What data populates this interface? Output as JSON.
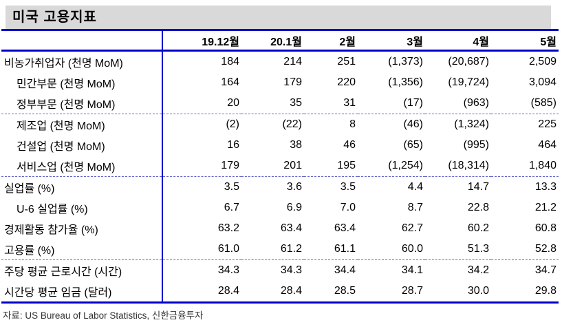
{
  "title": "미국 고용지표",
  "chart_data": {
    "type": "table",
    "title": "미국 고용지표",
    "columns": [
      "19.12월",
      "20.1월",
      "2월",
      "3월",
      "4월",
      "5월"
    ],
    "rows": [
      {
        "label": "비농가취업자 (천명 MoM)",
        "indent": false,
        "separator_below": false,
        "values": [
          "184",
          "214",
          "251",
          "(1,373)",
          "(20,687)",
          "2,509"
        ]
      },
      {
        "label": "민간부문 (천명 MoM)",
        "indent": true,
        "separator_below": false,
        "values": [
          "164",
          "179",
          "220",
          "(1,356)",
          "(19,724)",
          "3,094"
        ]
      },
      {
        "label": "정부부문 (천명 MoM)",
        "indent": true,
        "separator_below": true,
        "values": [
          "20",
          "35",
          "31",
          "(17)",
          "(963)",
          "(585)"
        ]
      },
      {
        "label": "제조업 (천명 MoM)",
        "indent": true,
        "separator_below": false,
        "values": [
          "(2)",
          "(22)",
          "8",
          "(46)",
          "(1,324)",
          "225"
        ]
      },
      {
        "label": "건설업 (천명 MoM)",
        "indent": true,
        "separator_below": false,
        "values": [
          "16",
          "38",
          "46",
          "(65)",
          "(995)",
          "464"
        ]
      },
      {
        "label": "서비스업 (천명 MoM)",
        "indent": true,
        "separator_below": true,
        "values": [
          "179",
          "201",
          "195",
          "(1,254)",
          "(18,314)",
          "1,840"
        ]
      },
      {
        "label": "실업률 (%)",
        "indent": false,
        "separator_below": false,
        "values": [
          "3.5",
          "3.6",
          "3.5",
          "4.4",
          "14.7",
          "13.3"
        ]
      },
      {
        "label": "U-6 실업률 (%)",
        "indent": true,
        "separator_below": false,
        "values": [
          "6.7",
          "6.9",
          "7.0",
          "8.7",
          "22.8",
          "21.2"
        ]
      },
      {
        "label": "경제활동 참가율 (%)",
        "indent": false,
        "separator_below": false,
        "values": [
          "63.2",
          "63.4",
          "63.4",
          "62.7",
          "60.2",
          "60.8"
        ]
      },
      {
        "label": "고용률 (%)",
        "indent": false,
        "separator_below": true,
        "values": [
          "61.0",
          "61.2",
          "61.1",
          "60.0",
          "51.3",
          "52.8"
        ]
      },
      {
        "label": "주당 평균 근로시간 (시간)",
        "indent": false,
        "separator_below": false,
        "values": [
          "34.3",
          "34.3",
          "34.4",
          "34.1",
          "34.2",
          "34.7"
        ]
      },
      {
        "label": "시간당 평균 임금 (달러)",
        "indent": false,
        "separator_below": false,
        "values": [
          "28.4",
          "28.4",
          "28.5",
          "28.7",
          "30.0",
          "29.8"
        ]
      }
    ],
    "source_note": "자료: US Bureau of Labor Statistics, 신한금융투자"
  },
  "colors": {
    "accent_blue": "#0000C8",
    "dashed_separator_blue": "#6464CC",
    "title_bar_bg": "#D9D9D9",
    "text": "#000000",
    "footer_text": "#333333"
  }
}
